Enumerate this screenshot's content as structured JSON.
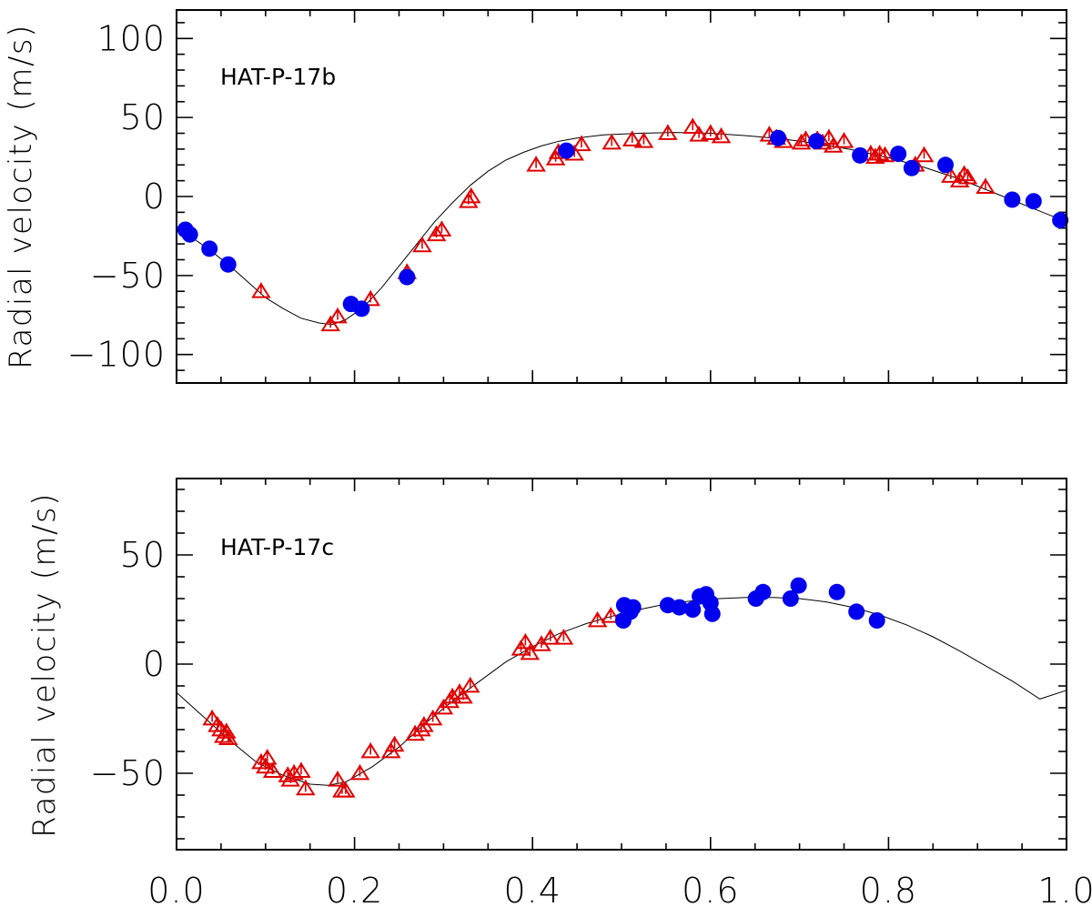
{
  "chart_data": [
    {
      "type": "scatter",
      "annotation": "HAT-P-17b",
      "ylabel": "Radial velocity (m/s)",
      "xlim": [
        0.0,
        1.0
      ],
      "ylim": [
        -118,
        118
      ],
      "yticks": [
        -100,
        -50,
        0,
        50,
        100
      ],
      "ytick_labels": [
        "−100",
        "−50",
        "0",
        "50",
        "100"
      ],
      "show_xtick_labels": false,
      "model": {
        "x": [
          0.0,
          0.02,
          0.04,
          0.06,
          0.08,
          0.1,
          0.12,
          0.14,
          0.16,
          0.175,
          0.19,
          0.21,
          0.23,
          0.25,
          0.27,
          0.29,
          0.31,
          0.33,
          0.35,
          0.37,
          0.39,
          0.41,
          0.43,
          0.45,
          0.48,
          0.52,
          0.56,
          0.6,
          0.64,
          0.68,
          0.72,
          0.76,
          0.8,
          0.84,
          0.88,
          0.92,
          0.96,
          1.0
        ],
        "y": [
          -19,
          -27,
          -35,
          -44,
          -54,
          -64,
          -71,
          -77,
          -80,
          -81,
          -78,
          -70,
          -58,
          -44,
          -30,
          -16,
          -4,
          7,
          16,
          23,
          28,
          32,
          35,
          37,
          39,
          40,
          40.5,
          40,
          38.5,
          36.5,
          33.5,
          29.5,
          24.5,
          18.5,
          11,
          2,
          -7,
          -16
        ]
      },
      "series": [
        {
          "name": "triangles",
          "marker": "open-triangle",
          "color": "#e00000",
          "x": [
            0.095,
            0.173,
            0.181,
            0.218,
            0.259,
            0.276,
            0.292,
            0.298,
            0.328,
            0.331,
            0.404,
            0.426,
            0.429,
            0.447,
            0.455,
            0.489,
            0.512,
            0.525,
            0.552,
            0.58,
            0.587,
            0.6,
            0.612,
            0.666,
            0.674,
            0.682,
            0.702,
            0.707,
            0.72,
            0.726,
            0.733,
            0.738,
            0.75,
            0.78,
            0.785,
            0.79,
            0.796,
            0.83,
            0.84,
            0.87,
            0.88,
            0.885,
            0.889,
            0.909
          ],
          "y": [
            -60,
            -81,
            -76,
            -65,
            -48,
            -31,
            -24,
            -21,
            -3,
            0,
            20,
            24,
            28,
            27,
            33,
            34,
            36,
            35,
            40,
            44,
            39,
            40,
            38,
            39,
            37,
            35,
            34,
            36,
            36,
            34,
            37,
            32,
            35,
            27,
            25,
            27,
            26,
            20,
            26,
            13,
            10,
            14,
            12,
            6
          ]
        },
        {
          "name": "circles",
          "marker": "filled-circle",
          "color": "#0000ee",
          "x": [
            0.01,
            0.015,
            0.037,
            0.058,
            0.196,
            0.208,
            0.259,
            0.438,
            0.676,
            0.719,
            0.768,
            0.811,
            0.826,
            0.864,
            0.939,
            0.963,
            0.993
          ],
          "y": [
            -21,
            -24,
            -33,
            -43,
            -68,
            -71,
            -51,
            29,
            37,
            35,
            26,
            27,
            18,
            20,
            -2,
            -3,
            -15
          ]
        }
      ]
    },
    {
      "type": "scatter",
      "annotation": "HAT-P-17c",
      "ylabel": "Radial velocity (m/s)",
      "xlim": [
        0.0,
        1.0
      ],
      "ylim": [
        -85,
        85
      ],
      "yticks": [
        -50,
        0,
        50
      ],
      "ytick_labels": [
        "−50",
        "0",
        "50"
      ],
      "xticks": [
        0.0,
        0.2,
        0.4,
        0.6,
        0.8,
        1.0
      ],
      "xtick_labels": [
        "0.0",
        "0.2",
        "0.4",
        "0.6",
        "0.8",
        "1.0"
      ],
      "model": {
        "x": [
          0.0,
          0.03,
          0.06,
          0.09,
          0.12,
          0.15,
          0.17,
          0.19,
          0.22,
          0.25,
          0.28,
          0.31,
          0.34,
          0.37,
          0.4,
          0.43,
          0.46,
          0.49,
          0.52,
          0.55,
          0.58,
          0.61,
          0.64,
          0.67,
          0.7,
          0.73,
          0.76,
          0.79,
          0.82,
          0.85,
          0.88,
          0.91,
          0.94,
          0.97,
          1.0
        ],
        "y": [
          -13,
          -24,
          -35,
          -45,
          -51,
          -55,
          -55.5,
          -54,
          -47,
          -38,
          -27,
          -17,
          -8,
          1,
          8,
          14,
          18.5,
          22,
          25,
          27.5,
          29,
          30,
          30.5,
          30.5,
          30,
          28.5,
          26,
          22.5,
          18,
          12.5,
          6,
          -1,
          -8,
          -16,
          -12
        ]
      },
      "series": [
        {
          "name": "triangles",
          "marker": "open-triangle",
          "color": "#e00000",
          "x": [
            0.04,
            0.046,
            0.05,
            0.053,
            0.056,
            0.058,
            0.095,
            0.1,
            0.102,
            0.108,
            0.125,
            0.128,
            0.132,
            0.14,
            0.145,
            0.181,
            0.186,
            0.19,
            0.206,
            0.218,
            0.241,
            0.245,
            0.268,
            0.275,
            0.278,
            0.288,
            0.3,
            0.307,
            0.31,
            0.318,
            0.322,
            0.33,
            0.387,
            0.392,
            0.397,
            0.41,
            0.42,
            0.435,
            0.473,
            0.488
          ],
          "y": [
            -25,
            -28,
            -30,
            -33,
            -31,
            -34,
            -45,
            -47,
            -43,
            -49,
            -51,
            -53,
            -50,
            -49,
            -57,
            -53,
            -58,
            -58,
            -50,
            -40,
            -40,
            -37,
            -32,
            -30,
            -28,
            -25,
            -20,
            -17,
            -15,
            -13,
            -15,
            -10,
            7,
            10,
            5,
            9,
            12,
            12,
            20,
            22
          ]
        },
        {
          "name": "circles",
          "marker": "filled-circle",
          "color": "#0000ee",
          "x": [
            0.502,
            0.503,
            0.51,
            0.513,
            0.552,
            0.565,
            0.58,
            0.588,
            0.595,
            0.6,
            0.602,
            0.651,
            0.659,
            0.69,
            0.699,
            0.742,
            0.764,
            0.787
          ],
          "y": [
            20,
            27,
            24,
            26,
            27,
            26,
            25,
            31,
            32,
            28,
            23,
            30,
            33,
            30,
            36,
            33,
            24,
            20
          ]
        }
      ]
    }
  ]
}
